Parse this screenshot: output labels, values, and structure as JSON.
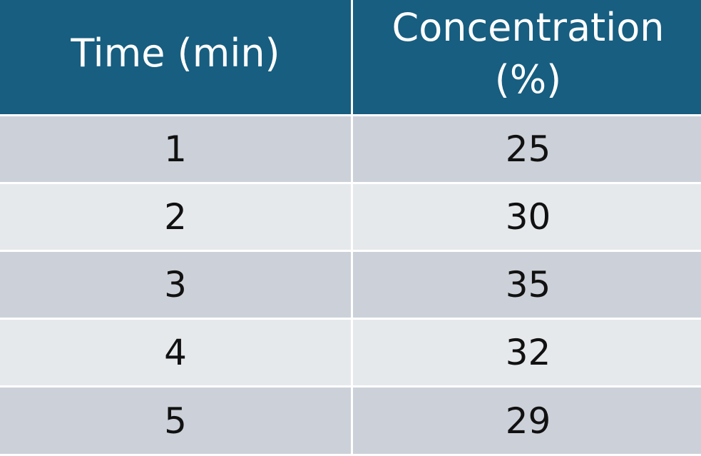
{
  "chart_data": {
    "type": "table",
    "columns": [
      "Time (min)",
      "Concentration (%)"
    ],
    "column_display": [
      "Time (min)",
      "Concentration\n(%)"
    ],
    "rows": [
      [
        "1",
        "25"
      ],
      [
        "2",
        "30"
      ],
      [
        "3",
        "35"
      ],
      [
        "4",
        "32"
      ],
      [
        "5",
        "29"
      ]
    ]
  },
  "colors": {
    "header_bg": "#175e80",
    "header_text": "#ffffff",
    "row_odd_bg": "#ccd1d9",
    "row_even_bg": "#e6e9ec",
    "divider": "#ffffff"
  }
}
